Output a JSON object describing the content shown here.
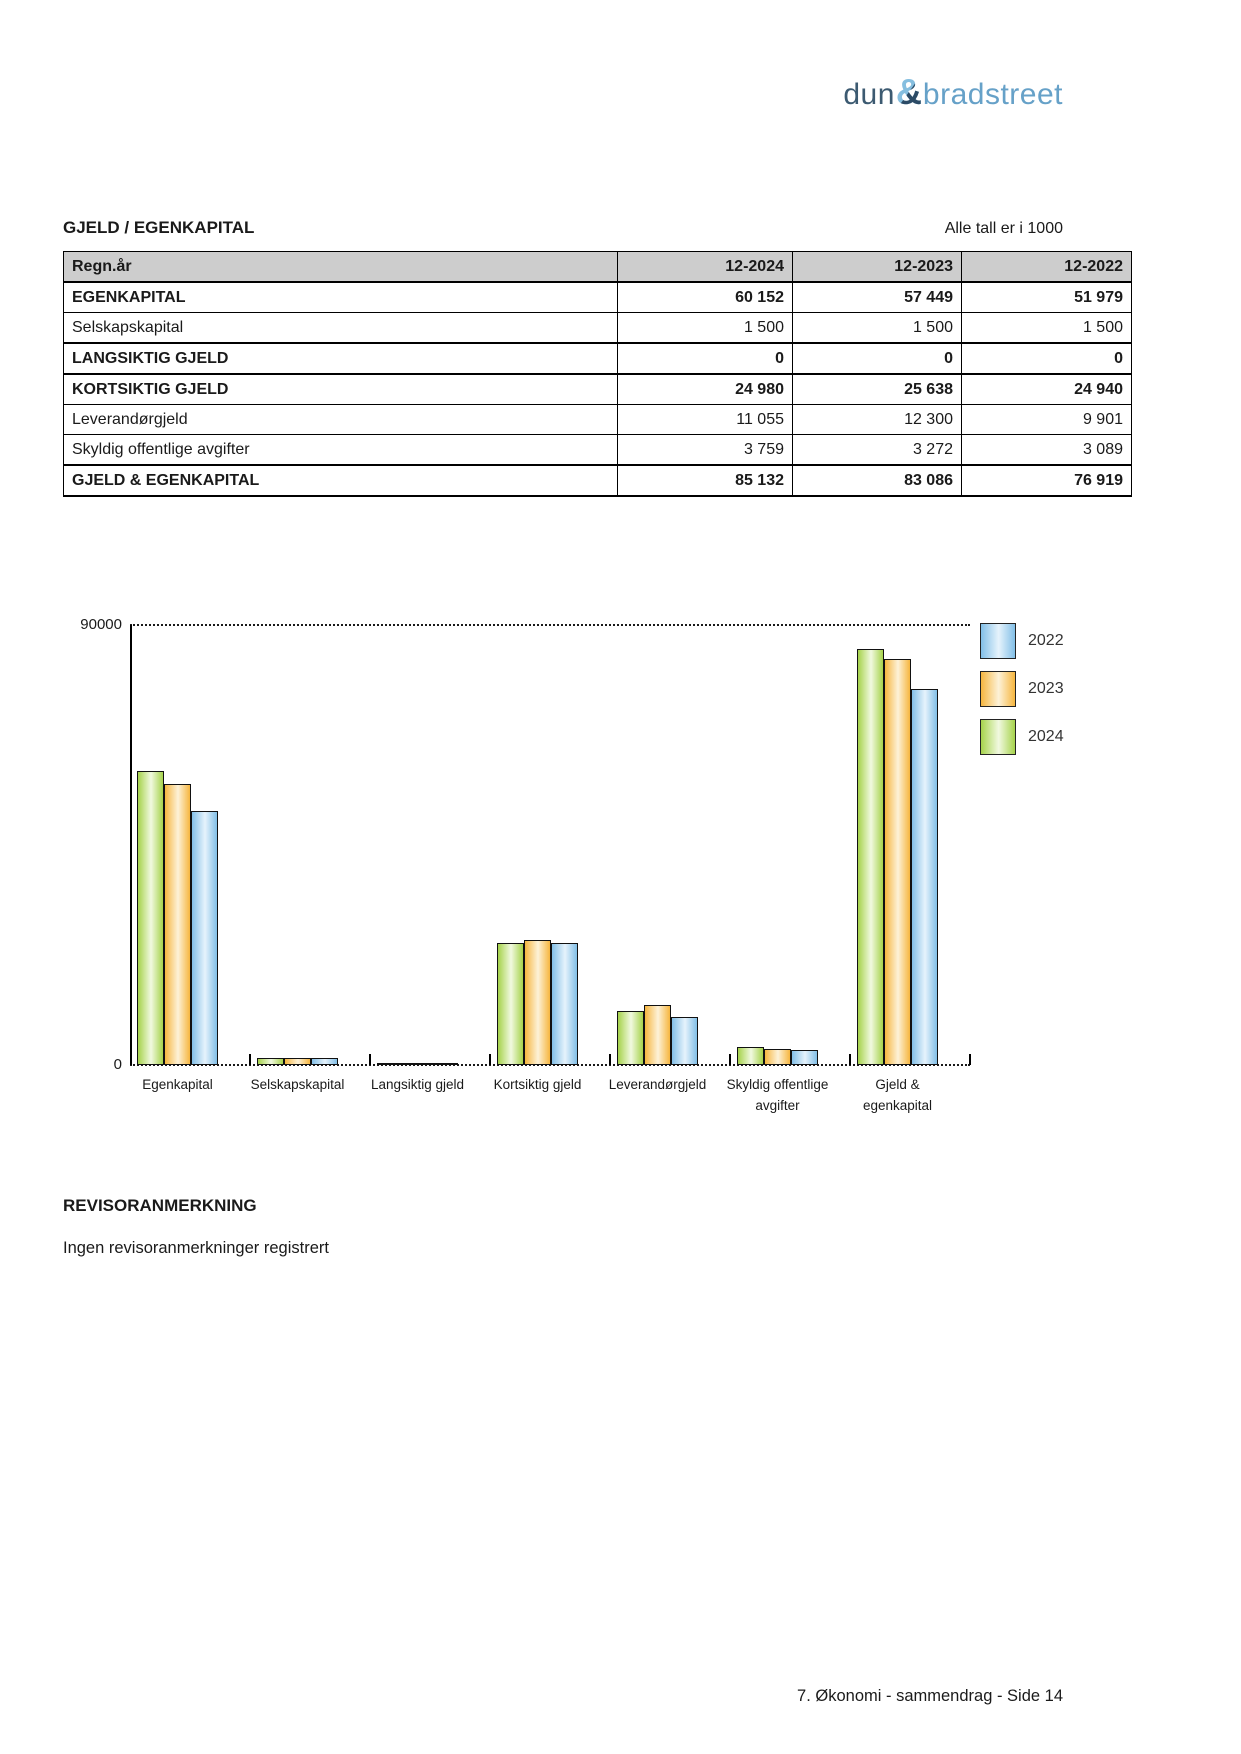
{
  "page": {
    "logo": {
      "dun": "dun",
      "amp": "&",
      "bradstreet": "bradstreet"
    },
    "section_title": "GJELD / EGENKAPITAL",
    "units_note": "Alle tall er i 1000",
    "table": {
      "header": [
        "Regn.år",
        "12-2024",
        "12-2023",
        "12-2022"
      ],
      "rows": [
        {
          "label": "EGENKAPITAL",
          "bold": true,
          "values": [
            "60 152",
            "57 449",
            "51 979"
          ]
        },
        {
          "label": "Selskapskapital",
          "bold": false,
          "values": [
            "1 500",
            "1 500",
            "1 500"
          ]
        },
        {
          "label": "LANGSIKTIG GJELD",
          "bold": true,
          "values": [
            "0",
            "0",
            "0"
          ]
        },
        {
          "label": "KORTSIKTIG GJELD",
          "bold": true,
          "values": [
            "24 980",
            "25 638",
            "24 940"
          ]
        },
        {
          "label": "Leverandørgjeld",
          "bold": false,
          "values": [
            "11 055",
            "12 300",
            "9 901"
          ]
        },
        {
          "label": "Skyldig offentlige avgifter",
          "bold": false,
          "values": [
            "3 759",
            "3 272",
            "3 089"
          ]
        },
        {
          "label": "GJELD & EGENKAPITAL",
          "bold": true,
          "values": [
            "85 132",
            "83 086",
            "76 919"
          ]
        }
      ]
    },
    "revisor": {
      "heading": "REVISORANMERKNING",
      "text": "Ingen revisoranmerkninger registrert"
    },
    "footer": "7. Økonomi - sammendrag - Side 14"
  },
  "chart_data": {
    "type": "bar",
    "title": "",
    "xlabel": "",
    "ylabel": "",
    "categories": [
      "Egenkapital",
      "Selskapskapital",
      "Langsiktig gjeld",
      "Kortsiktig gjeld",
      "Leverandørgjeld",
      "Skyldig offentlige\navgifter",
      "Gjeld &\negenkapital"
    ],
    "series": [
      {
        "name": "2024",
        "color": "#a6d34b",
        "color_light": "#f1f9e0",
        "values": [
          60152,
          1500,
          0,
          24980,
          11055,
          3759,
          85132
        ]
      },
      {
        "name": "2023",
        "color": "#f6b63f",
        "color_light": "#fdf2d8",
        "values": [
          57449,
          1500,
          0,
          25638,
          12300,
          3272,
          83086
        ]
      },
      {
        "name": "2022",
        "color": "#82bfe7",
        "color_light": "#e6f3fc",
        "values": [
          51979,
          1500,
          0,
          24940,
          9901,
          3089,
          76919
        ]
      }
    ],
    "bar_order_note": "bars left-to-right per group: 2024, 2023, 2022",
    "legend": [
      "2022",
      "2023",
      "2024"
    ],
    "legend_position": "top-right",
    "ylim": [
      0,
      90000
    ],
    "yticks": [
      {
        "value": 90000,
        "label": "90000"
      },
      {
        "value": 0,
        "label": "0"
      }
    ],
    "grid": "dotted line at top (90000) and at baseline (0) only"
  }
}
